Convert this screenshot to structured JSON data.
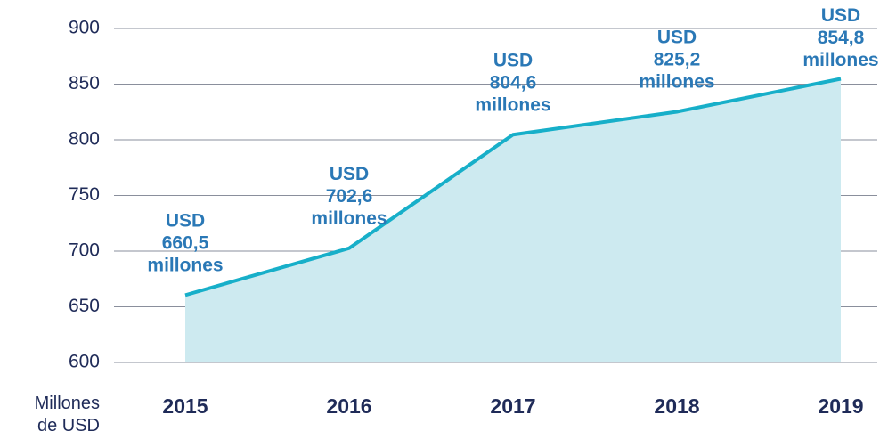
{
  "chart_data": {
    "type": "area",
    "y_axis_label": "Millones de USD",
    "categories": [
      "2015",
      "2016",
      "2017",
      "2018",
      "2019"
    ],
    "values": [
      660.5,
      702.6,
      804.6,
      825.2,
      854.8
    ],
    "value_labels": [
      "USD 660,5 millones",
      "USD 702,6 millones",
      "USD 804,6 millones",
      "USD 825,2 millones",
      "USD 854,8 millones"
    ],
    "color": "#17afc9",
    "fill_color": "#cdeaf0",
    "ylim": [
      600,
      900
    ],
    "yticks": [
      600,
      650,
      700,
      750,
      800,
      850,
      900
    ],
    "grid": true
  }
}
